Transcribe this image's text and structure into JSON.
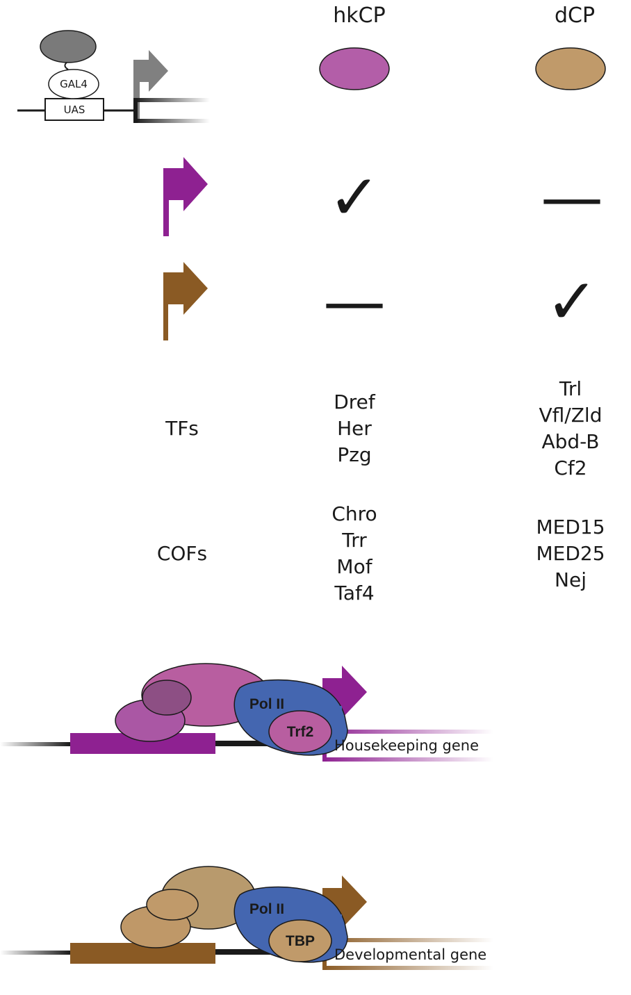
{
  "headers": {
    "hk": "hkCP",
    "dev": "dCP"
  },
  "reporter": {
    "gal4": "GAL4",
    "uas": "UAS"
  },
  "matrix": {
    "row1": {
      "hk": "✓",
      "dev": "—"
    },
    "row2": {
      "hk": "—",
      "dev": "✓"
    }
  },
  "tfs": {
    "label": "TFs",
    "hk": [
      "Dref",
      "Her",
      "Pzg"
    ],
    "dev": [
      "Trl",
      "Vfl/Zld",
      "Abd-B",
      "Cf2"
    ]
  },
  "cofs": {
    "label": "COFs",
    "hk": [
      "Chro",
      "Trr",
      "Mof",
      "Taf4"
    ],
    "dev": [
      "MED15",
      "MED25",
      "Nej"
    ]
  },
  "models": {
    "hk": {
      "pol": "Pol II",
      "factor": "Trf2",
      "gene": "Housekeeping gene"
    },
    "dev": {
      "pol": "Pol II",
      "factor": "TBP",
      "gene": "Developmental gene"
    }
  },
  "colors": {
    "hk_accent": "#8e2191",
    "hk_light": "#b35ea8",
    "dev_accent": "#8a5a24",
    "dev_light": "#c09a6a",
    "pol": "#4466b0",
    "grey": "#808080"
  }
}
